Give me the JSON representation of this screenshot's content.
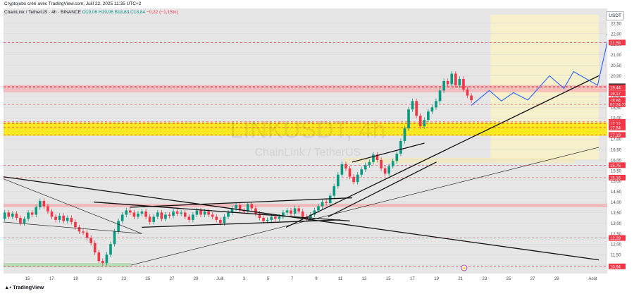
{
  "header": {
    "credit": "Cryptojobs créé avec TradingView.com, Juill 22, 2025 11:35 UTC+2",
    "symbol": "ChainLink / TetherUS · 4h · BINANCE",
    "open": "O19,06",
    "high": "H19,06",
    "low": "B18,63",
    "close": "C18,84",
    "change": "−0,22 (−1,15%)"
  },
  "watermark": {
    "ticker": "LINKUSDT, 4h",
    "name": "ChainLink / TetherUS"
  },
  "currency": "USDT",
  "footer": {
    "brand": "TradingView"
  },
  "colors": {
    "up": "#089981",
    "down": "#f23645",
    "resistance_band": "#f6a9ae",
    "support_band": "#ffe600",
    "demand_zone": "#a5d6a7",
    "projection_zone": "#f7f1c8",
    "projection_path": "#2962ff",
    "price_tag": "#f23645"
  },
  "chart_data": {
    "type": "candlestick",
    "timeframe": "4h",
    "ylim": [
      10.6,
      23.2
    ],
    "y_ticks": [
      11.0,
      11.5,
      12.0,
      12.5,
      13.0,
      13.5,
      14.0,
      14.5,
      15.0,
      15.5,
      16.0,
      16.5,
      17.0,
      17.5,
      18.0,
      18.5,
      19.0,
      20.0,
      20.5,
      21.0,
      21.5,
      22.0,
      22.5
    ],
    "y_tick_labels": [
      "11,00",
      "11,50",
      "12,00",
      "12,50",
      "13,00",
      "13,50",
      "14,00",
      "14,50",
      "15,00",
      "15,50",
      "16,00",
      "16,50",
      "17,00",
      "17,50",
      "18,00",
      "18,50",
      "19,00",
      "20,00",
      "20,50",
      "21,00",
      "21,50",
      "22,00",
      "22,50"
    ],
    "x_ticks": [
      {
        "label": "15",
        "day": 15
      },
      {
        "label": "17",
        "day": 17
      },
      {
        "label": "19",
        "day": 19
      },
      {
        "label": "21",
        "day": 21
      },
      {
        "label": "23",
        "day": 23
      },
      {
        "label": "25",
        "day": 25
      },
      {
        "label": "27",
        "day": 27
      },
      {
        "label": "29",
        "day": 29
      },
      {
        "label": "Juill",
        "day": 31
      },
      {
        "label": "3",
        "day": 33
      },
      {
        "label": "5",
        "day": 35
      },
      {
        "label": "7",
        "day": 37
      },
      {
        "label": "9",
        "day": 39
      },
      {
        "label": "11",
        "day": 41
      },
      {
        "label": "13",
        "day": 43
      },
      {
        "label": "15",
        "day": 45
      },
      {
        "label": "17",
        "day": 47
      },
      {
        "label": "19",
        "day": 49
      },
      {
        "label": "21",
        "day": 51
      },
      {
        "label": "23",
        "day": 53
      },
      {
        "label": "25",
        "day": 55
      },
      {
        "label": "27",
        "day": 57
      },
      {
        "label": "29",
        "day": 59
      },
      {
        "label": "Août",
        "day": 62
      }
    ],
    "price_path": [
      [
        13.2,
        13.5
      ],
      [
        13.5,
        13.3
      ],
      [
        13.3,
        13.45
      ],
      [
        13.45,
        13.25
      ],
      [
        13.25,
        13.0
      ],
      [
        13.0,
        13.2
      ],
      [
        13.2,
        13.5
      ],
      [
        13.5,
        13.4
      ],
      [
        13.4,
        13.75
      ],
      [
        13.75,
        14.05
      ],
      [
        14.05,
        13.8
      ],
      [
        13.8,
        13.55
      ],
      [
        13.55,
        13.3
      ],
      [
        13.3,
        13.15
      ],
      [
        13.15,
        13.35
      ],
      [
        13.35,
        13.1
      ],
      [
        13.1,
        13.25
      ],
      [
        13.25,
        13.05
      ],
      [
        13.05,
        12.8
      ],
      [
        12.8,
        12.6
      ],
      [
        12.6,
        12.55
      ],
      [
        12.55,
        12.3
      ],
      [
        12.3,
        12.05
      ],
      [
        12.05,
        11.6
      ],
      [
        11.6,
        11.2
      ],
      [
        11.2,
        11.1
      ],
      [
        11.1,
        11.5
      ],
      [
        11.5,
        12.0
      ],
      [
        12.0,
        12.6
      ],
      [
        12.6,
        13.1
      ],
      [
        13.1,
        13.4
      ],
      [
        13.4,
        13.6
      ],
      [
        13.6,
        13.5
      ],
      [
        13.5,
        13.3
      ],
      [
        13.3,
        13.45
      ],
      [
        13.45,
        13.55
      ],
      [
        13.55,
        13.3
      ],
      [
        13.3,
        13.05
      ],
      [
        13.05,
        13.3
      ],
      [
        13.3,
        13.5
      ],
      [
        13.5,
        13.2
      ],
      [
        13.2,
        13.4
      ],
      [
        13.4,
        13.35
      ],
      [
        13.35,
        13.55
      ],
      [
        13.55,
        13.45
      ],
      [
        13.45,
        13.5
      ],
      [
        13.5,
        13.3
      ],
      [
        13.3,
        13.15
      ],
      [
        13.15,
        13.4
      ],
      [
        13.4,
        13.6
      ],
      [
        13.6,
        13.4
      ],
      [
        13.4,
        13.55
      ],
      [
        13.55,
        13.4
      ],
      [
        13.4,
        13.3
      ],
      [
        13.3,
        13.15
      ],
      [
        13.15,
        13.0
      ],
      [
        13.0,
        13.3
      ],
      [
        13.3,
        13.5
      ],
      [
        13.5,
        13.7
      ],
      [
        13.7,
        13.85
      ],
      [
        13.85,
        13.6
      ],
      [
        13.6,
        13.55
      ],
      [
        13.55,
        13.9
      ],
      [
        13.9,
        13.7
      ],
      [
        13.7,
        13.45
      ],
      [
        13.45,
        13.25
      ],
      [
        13.25,
        13.1
      ],
      [
        13.1,
        13.15
      ],
      [
        13.15,
        13.3
      ],
      [
        13.3,
        13.2
      ],
      [
        13.2,
        13.3
      ],
      [
        13.3,
        13.5
      ],
      [
        13.5,
        13.6
      ],
      [
        13.6,
        13.45
      ],
      [
        13.45,
        13.7
      ],
      [
        13.7,
        13.55
      ],
      [
        13.55,
        13.3
      ],
      [
        13.3,
        13.2
      ],
      [
        13.2,
        13.4
      ],
      [
        13.4,
        13.6
      ],
      [
        13.6,
        13.8
      ],
      [
        13.8,
        14.0
      ],
      [
        14.0,
        13.95
      ],
      [
        13.95,
        14.3
      ],
      [
        14.3,
        14.75
      ],
      [
        14.75,
        15.3
      ],
      [
        15.3,
        15.8
      ],
      [
        15.8,
        15.6
      ],
      [
        15.6,
        15.2
      ],
      [
        15.2,
        14.95
      ],
      [
        14.95,
        15.3
      ],
      [
        15.3,
        15.55
      ],
      [
        15.55,
        15.75
      ],
      [
        15.75,
        15.9
      ],
      [
        15.9,
        16.25
      ],
      [
        16.25,
        16.0
      ],
      [
        16.0,
        15.6
      ],
      [
        15.6,
        15.35
      ],
      [
        15.35,
        15.7
      ],
      [
        15.7,
        15.95
      ],
      [
        15.95,
        16.3
      ],
      [
        16.3,
        16.9
      ],
      [
        16.9,
        17.5
      ],
      [
        17.5,
        18.4
      ],
      [
        18.4,
        18.8
      ],
      [
        18.8,
        18.1
      ],
      [
        18.1,
        17.6
      ],
      [
        17.6,
        17.9
      ],
      [
        17.9,
        18.3
      ],
      [
        18.3,
        18.5
      ],
      [
        18.5,
        18.8
      ],
      [
        18.8,
        19.3
      ],
      [
        19.3,
        19.75
      ],
      [
        19.75,
        19.6
      ],
      [
        19.6,
        20.1
      ],
      [
        20.1,
        19.55
      ],
      [
        19.55,
        19.85
      ],
      [
        19.85,
        19.35
      ],
      [
        19.35,
        19.06
      ],
      [
        19.06,
        18.84
      ]
    ],
    "projection_path": [
      [
        20.5,
        18.6
      ],
      [
        22.0,
        19.3
      ],
      [
        23.0,
        18.8
      ],
      [
        24.0,
        19.2
      ],
      [
        25.2,
        18.85
      ],
      [
        27.0,
        20.0
      ],
      [
        28.2,
        19.4
      ],
      [
        29.0,
        20.2
      ],
      [
        31.0,
        19.55
      ],
      [
        32.0,
        22.1
      ]
    ],
    "horizontal_levels": [
      21.58,
      19.5,
      19.44,
      18.64,
      17.81,
      17.72,
      17.54,
      17.19,
      15.75,
      15.16,
      12.29,
      10.94
    ],
    "zones": [
      {
        "name": "resistance",
        "from": 19.22,
        "to": 19.56,
        "color": "#f6a9ae"
      },
      {
        "name": "support",
        "from": 17.15,
        "to": 17.78,
        "color": "#ffe600"
      },
      {
        "name": "demand",
        "from": 10.9,
        "to": 11.1,
        "color": "#a5d6a7"
      },
      {
        "name": "old-resistance",
        "from": 13.75,
        "to": 13.92,
        "color": "#f6a9ae"
      }
    ],
    "price_tags": [
      {
        "value": 21.58,
        "label": "21,58",
        "color": "#f23645"
      },
      {
        "value": 19.5,
        "label": "19,50",
        "color": "#3a3a3a"
      },
      {
        "value": 19.44,
        "label": "19,44",
        "color": "#f23645"
      },
      {
        "value": 19.17,
        "label": "19,17",
        "color": "#f23645"
      },
      {
        "value": 18.84,
        "label": "18,84",
        "color": "#f23645"
      },
      {
        "value": 18.64,
        "label": "02:24:23",
        "color": "#f23645"
      },
      {
        "value": 17.81,
        "label": "17,81",
        "color": "#f23645"
      },
      {
        "value": 17.72,
        "label": "17,72",
        "color": "#f23645"
      },
      {
        "value": 17.54,
        "label": "17,54",
        "color": "#f23645"
      },
      {
        "value": 17.19,
        "label": "17,19",
        "color": "#f23645"
      },
      {
        "value": 15.75,
        "label": "15,75",
        "color": "#f23645"
      },
      {
        "value": 15.16,
        "label": "15,16",
        "color": "#f23645"
      },
      {
        "value": 12.29,
        "label": "12,29",
        "color": "#f23645"
      },
      {
        "value": 10.94,
        "label": "10,94",
        "color": "#f23645"
      }
    ],
    "event_icon": "lightning-icon"
  }
}
